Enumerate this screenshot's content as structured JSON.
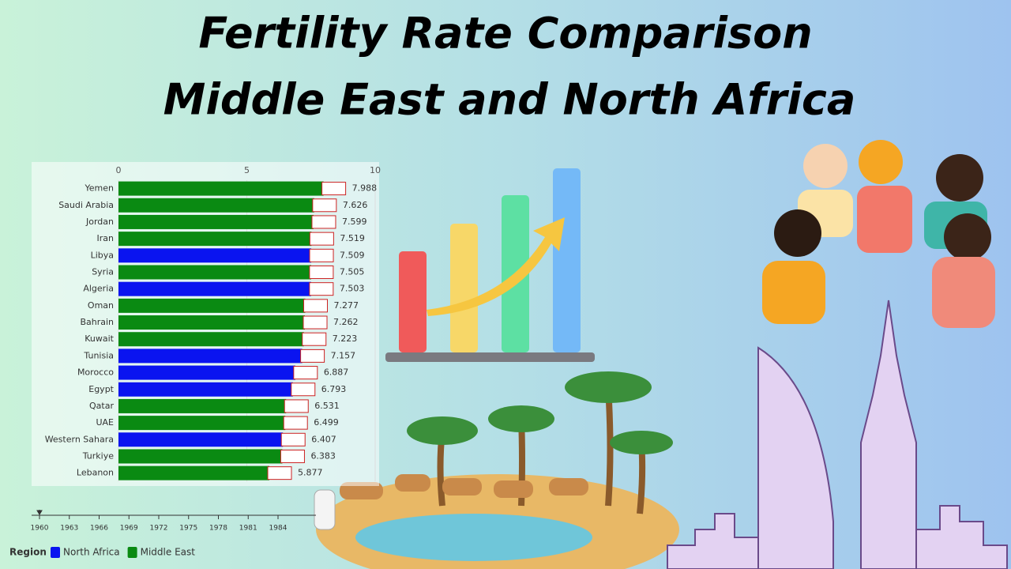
{
  "chart_data": {
    "type": "bar",
    "orientation": "horizontal",
    "title": [
      "Fertility Rate Comparison",
      "Middle East and North Africa"
    ],
    "categories": [
      "Yemen",
      "Saudi Arabia",
      "Jordan",
      "Iran",
      "Libya",
      "Syria",
      "Algeria",
      "Oman",
      "Bahrain",
      "Kuwait",
      "Tunisia",
      "Morocco",
      "Egypt",
      "Qatar",
      "UAE",
      "Western Sahara",
      "Turkiye",
      "Lebanon"
    ],
    "series": [
      {
        "name": "North Africa",
        "color": "#0a14f0",
        "values": [
          null,
          null,
          null,
          null,
          7.509,
          null,
          7.503,
          null,
          null,
          null,
          7.157,
          6.887,
          6.793,
          null,
          null,
          6.407,
          null,
          null
        ]
      },
      {
        "name": "Middle East",
        "color": "#0a8a12",
        "values": [
          7.988,
          7.626,
          7.599,
          7.519,
          null,
          7.505,
          null,
          7.277,
          7.262,
          7.223,
          null,
          null,
          null,
          6.531,
          6.499,
          null,
          6.383,
          5.877
        ]
      }
    ],
    "xlim": [
      0,
      10
    ],
    "xticks": [
      0,
      5,
      10
    ],
    "grid": true,
    "legend_title": "Region",
    "time_ticks": [
      1960,
      1963,
      1966,
      1969,
      1972,
      1975,
      1978,
      1981,
      1984
    ]
  }
}
